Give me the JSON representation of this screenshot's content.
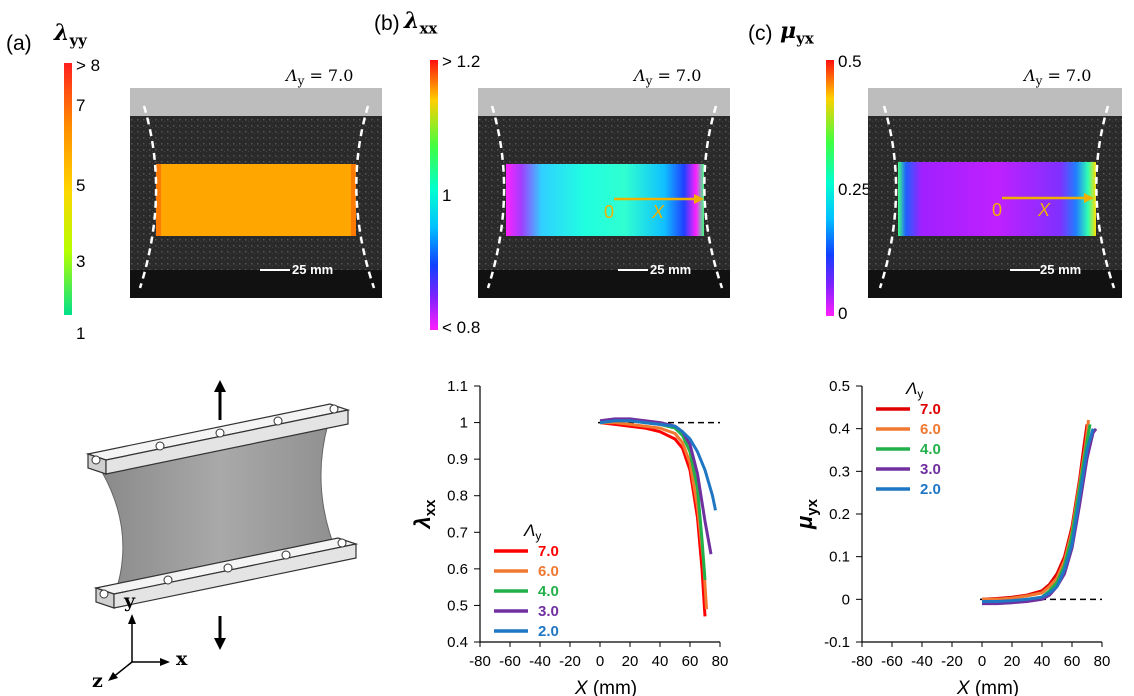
{
  "panels": {
    "a": {
      "label": "(a)",
      "symbol": "λ",
      "symbol_sub": "yy",
      "colorbar_ticks": [
        "> 8",
        "7",
        "5",
        "3",
        "1"
      ],
      "stretch_label": "Λ",
      "stretch_sub": "y",
      "stretch_value": "= 7.0",
      "scale_bar": "25 mm",
      "colorbar_colors": [
        "#ff1a1a",
        "#ff8c00",
        "#ffd400",
        "#c8ff00",
        "#00e676"
      ],
      "field_color": "#ffa600"
    },
    "b": {
      "label": "(b)",
      "symbol": "λ",
      "symbol_sub": "xx",
      "colorbar_ticks": [
        "> 1.2",
        "1",
        "< 0.8"
      ],
      "stretch_label": "Λ",
      "stretch_sub": "y",
      "stretch_value": "= 7.0",
      "scale_bar": "25 mm",
      "origin_label": "0",
      "axis_label": "X"
    },
    "c": {
      "label": "(c)",
      "symbol": "μ",
      "symbol_sub": "yx",
      "colorbar_ticks": [
        "0.5",
        "0.25",
        "0"
      ],
      "stretch_label": "Λ",
      "stretch_sub": "y",
      "stretch_value": "= 7.0",
      "scale_bar": "25 mm",
      "origin_label": "0",
      "axis_label": "X"
    }
  },
  "schematic": {
    "axis_x": "x",
    "axis_y": "y",
    "axis_z": "z"
  },
  "chart_data": [
    {
      "type": "line",
      "xlabel": "X",
      "xlabel_unit": "(mm)",
      "ylabel": "λ",
      "ylabel_sub": "xx",
      "xlim": [
        -80,
        80
      ],
      "ylim": [
        0.4,
        1.1
      ],
      "xticks": [
        -80,
        -60,
        -40,
        -20,
        0,
        20,
        40,
        60,
        80
      ],
      "yticks": [
        0.4,
        0.5,
        0.6,
        0.7,
        0.8,
        0.9,
        1,
        1.1
      ],
      "ytick_labels": [
        "0.4",
        "0.5",
        "0.6",
        "0.7",
        "0.8",
        "0.9",
        "1",
        "1.1"
      ],
      "reference_line": 1,
      "legend_title": "Λ",
      "legend_title_sub": "y",
      "legend_position": "lower-left",
      "series": [
        {
          "name": "7.0",
          "color": "#ff0000",
          "x": [
            0,
            10,
            20,
            30,
            40,
            50,
            55,
            60,
            65,
            68,
            70
          ],
          "y": [
            1.0,
            0.995,
            0.99,
            0.985,
            0.975,
            0.955,
            0.93,
            0.87,
            0.74,
            0.6,
            0.47
          ]
        },
        {
          "name": "6.0",
          "color": "#f07830",
          "x": [
            0,
            10,
            20,
            30,
            40,
            50,
            55,
            60,
            65,
            69,
            71
          ],
          "y": [
            1.0,
            1.0,
            0.995,
            0.99,
            0.985,
            0.97,
            0.945,
            0.89,
            0.77,
            0.62,
            0.49
          ]
        },
        {
          "name": "4.0",
          "color": "#22b04a",
          "x": [
            0,
            10,
            20,
            30,
            40,
            50,
            55,
            60,
            65,
            68,
            70
          ],
          "y": [
            1.0,
            1.005,
            1.005,
            1.0,
            0.995,
            0.985,
            0.965,
            0.92,
            0.82,
            0.68,
            0.57
          ]
        },
        {
          "name": "3.0",
          "color": "#7030a0",
          "x": [
            0,
            10,
            20,
            30,
            40,
            50,
            55,
            60,
            65,
            70,
            74
          ],
          "y": [
            1.005,
            1.01,
            1.01,
            1.005,
            1.0,
            0.99,
            0.975,
            0.94,
            0.86,
            0.73,
            0.64
          ]
        },
        {
          "name": "2.0",
          "color": "#1f77c4",
          "x": [
            0,
            10,
            20,
            30,
            40,
            50,
            55,
            60,
            65,
            70,
            75,
            77
          ],
          "y": [
            1.0,
            1.005,
            1.005,
            1.0,
            0.995,
            0.99,
            0.975,
            0.955,
            0.92,
            0.87,
            0.8,
            0.76
          ]
        }
      ]
    },
    {
      "type": "line",
      "xlabel": "X",
      "xlabel_unit": "(mm)",
      "ylabel": "μ",
      "ylabel_sub": "yx",
      "xlim": [
        -80,
        80
      ],
      "ylim": [
        -0.1,
        0.5
      ],
      "xticks": [
        -80,
        -60,
        -40,
        -20,
        0,
        20,
        40,
        60,
        80
      ],
      "yticks": [
        -0.1,
        0,
        0.1,
        0.2,
        0.3,
        0.4,
        0.5
      ],
      "ytick_labels": [
        "-0.1",
        "0",
        "0.1",
        "0.2",
        "0.3",
        "0.4",
        "0.5"
      ],
      "reference_line": 0,
      "legend_title": "Λ",
      "legend_title_sub": "y",
      "legend_position": "upper-left",
      "series": [
        {
          "name": "7.0",
          "color": "#e00000",
          "x": [
            0,
            10,
            20,
            30,
            40,
            45,
            50,
            55,
            60,
            65,
            68,
            70
          ],
          "y": [
            0.0,
            0.002,
            0.005,
            0.01,
            0.02,
            0.035,
            0.06,
            0.1,
            0.17,
            0.28,
            0.36,
            0.41
          ]
        },
        {
          "name": "6.0",
          "color": "#f07830",
          "x": [
            0,
            10,
            20,
            30,
            40,
            45,
            50,
            55,
            60,
            65,
            69,
            71
          ],
          "y": [
            0.0,
            0.0,
            0.003,
            0.008,
            0.015,
            0.03,
            0.05,
            0.09,
            0.16,
            0.27,
            0.36,
            0.42
          ]
        },
        {
          "name": "4.0",
          "color": "#22b04a",
          "x": [
            0,
            10,
            20,
            30,
            40,
            45,
            50,
            55,
            60,
            65,
            70,
            72
          ],
          "y": [
            -0.01,
            -0.008,
            -0.005,
            0.0,
            0.005,
            0.02,
            0.04,
            0.08,
            0.15,
            0.26,
            0.37,
            0.41
          ]
        },
        {
          "name": "3.0",
          "color": "#7030a0",
          "x": [
            0,
            10,
            20,
            30,
            40,
            45,
            50,
            55,
            60,
            65,
            70,
            74,
            76
          ],
          "y": [
            -0.01,
            -0.01,
            -0.008,
            -0.005,
            0.0,
            0.01,
            0.03,
            0.06,
            0.12,
            0.22,
            0.33,
            0.39,
            0.4
          ]
        },
        {
          "name": "2.0",
          "color": "#1f77c4",
          "x": [
            0,
            10,
            20,
            30,
            40,
            45,
            50,
            55,
            60,
            65,
            70,
            74
          ],
          "y": [
            -0.005,
            -0.005,
            -0.003,
            0.0,
            0.005,
            0.015,
            0.03,
            0.07,
            0.13,
            0.24,
            0.35,
            0.4
          ]
        }
      ]
    }
  ]
}
